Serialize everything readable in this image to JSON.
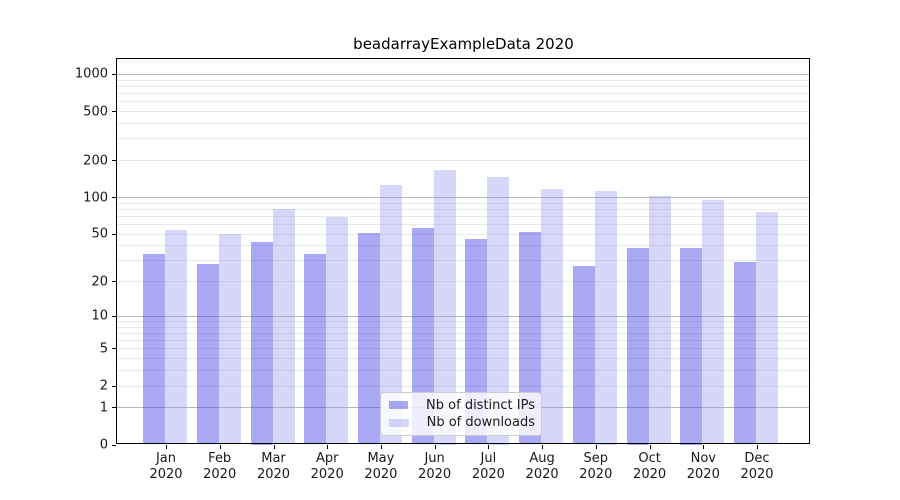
{
  "title": "beadarrayExampleData 2020",
  "legend": {
    "items": [
      {
        "label": "Nb of distinct IPs",
        "series": "ips"
      },
      {
        "label": "Nb of downloads",
        "series": "downloads"
      }
    ]
  },
  "y_axis": {
    "tick_labels": [
      "1000",
      "500",
      "200",
      "100",
      "50",
      "20",
      "10",
      "5",
      "2",
      "1",
      "0"
    ],
    "tick_values": [
      1000,
      500,
      200,
      100,
      50,
      20,
      10,
      5,
      2,
      1,
      0
    ],
    "major_grid_values": [
      1,
      10,
      100,
      1000
    ],
    "minor_grid_values": [
      2,
      3,
      4,
      5,
      6,
      7,
      8,
      9,
      20,
      30,
      40,
      50,
      60,
      70,
      80,
      90,
      200,
      300,
      400,
      500,
      600,
      700,
      800,
      900
    ]
  },
  "x_axis": {
    "month_labels": [
      "Jan",
      "Feb",
      "Mar",
      "Apr",
      "May",
      "Jun",
      "Jul",
      "Aug",
      "Sep",
      "Oct",
      "Nov",
      "Dec"
    ],
    "year_label": "2020"
  },
  "colors": {
    "ips_bar_hex": "#a9a9f5",
    "downloads_bar_hex": "#d8d8fa",
    "ips_bar_rgba": "rgba(72,72,235,0.47)",
    "downloads_bar_rgba": "rgba(140,140,240,0.35)",
    "major_grid": "#b8b8b8",
    "minor_grid": "#e9e9e9",
    "spine": "#000000",
    "text": "#1a1a1a"
  },
  "chart_data": {
    "type": "bar",
    "title": "beadarrayExampleData 2020",
    "categories": [
      "Jan 2020",
      "Feb 2020",
      "Mar 2020",
      "Apr 2020",
      "May 2020",
      "Jun 2020",
      "Jul 2020",
      "Aug 2020",
      "Sep 2020",
      "Oct 2020",
      "Nov 2020",
      "Dec 2020"
    ],
    "series": [
      {
        "name": "Nb of distinct IPs",
        "values": [
          34,
          28,
          43,
          34,
          51,
          56,
          45,
          52,
          27,
          38,
          38,
          29
        ]
      },
      {
        "name": "Nb of downloads",
        "values": [
          54,
          50,
          80,
          68,
          125,
          166,
          147,
          116,
          113,
          102,
          95,
          75
        ]
      }
    ],
    "xlabel": "",
    "ylabel": "",
    "yscale": "log10(value+1)",
    "y_ticks": [
      0,
      1,
      2,
      5,
      10,
      20,
      50,
      100,
      200,
      500,
      1000
    ],
    "ylim": [
      0,
      1345
    ],
    "grid": "horizontal, log minor + major",
    "legend_position": "inside lower-center"
  }
}
